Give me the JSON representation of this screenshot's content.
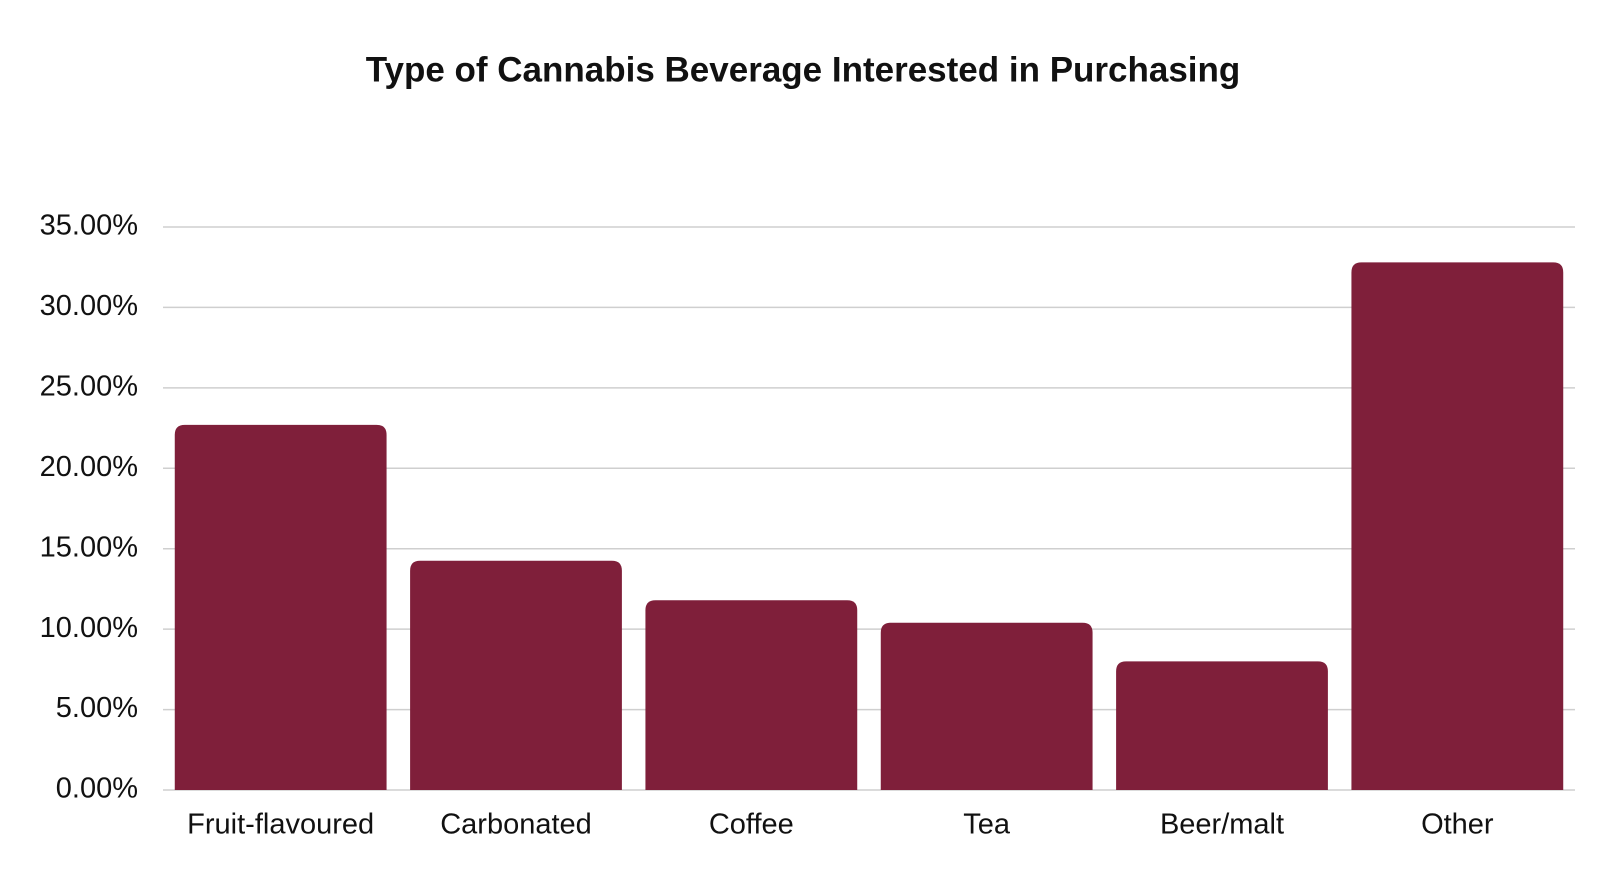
{
  "chart_data": {
    "type": "bar",
    "title": "Type of Cannabis Beverage Interested in Purchasing",
    "categories": [
      "Fruit-flavoured",
      "Carbonated",
      "Coffee",
      "Tea",
      "Beer/malt",
      "Other"
    ],
    "values": [
      22.7,
      14.25,
      11.8,
      10.4,
      8.0,
      32.8
    ],
    "color": "#7f1f3a",
    "ylim": [
      0,
      35
    ],
    "yticks": [
      {
        "value": 0,
        "label": "0.00%"
      },
      {
        "value": 5,
        "label": "5.00%"
      },
      {
        "value": 10,
        "label": "10.00%"
      },
      {
        "value": 15,
        "label": "15.00%"
      },
      {
        "value": 20,
        "label": "20.00%"
      },
      {
        "value": 25,
        "label": "25.00%"
      },
      {
        "value": 30,
        "label": "30.00%"
      },
      {
        "value": 35,
        "label": "35.00%"
      }
    ],
    "grid": true
  }
}
